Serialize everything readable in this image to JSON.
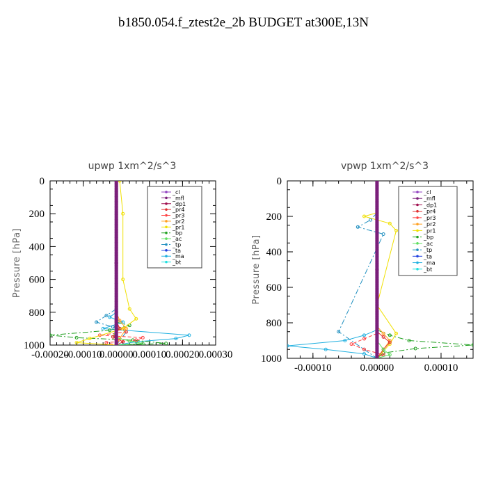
{
  "page": {
    "title": "b1850.054.f_ztest2e_2b  BUDGET at300E,13N"
  },
  "legend_entries": [
    {
      "name": "_cl",
      "color": "#9040c0",
      "style": "solid"
    },
    {
      "name": "_mfl",
      "color": "#7a1f7a",
      "style": "solid"
    },
    {
      "name": "_dp1",
      "color": "#a01050",
      "style": "solid"
    },
    {
      "name": "_pr4",
      "color": "#e03030",
      "style": "solid"
    },
    {
      "name": "_pr3",
      "color": "#ff4040",
      "style": "dash"
    },
    {
      "name": "_pr2",
      "color": "#ffa020",
      "style": "solid"
    },
    {
      "name": "_pr1",
      "color": "#f0e000",
      "style": "solid"
    },
    {
      "name": "_bp",
      "color": "#20a020",
      "style": "dashdot"
    },
    {
      "name": "_ac",
      "color": "#60e060",
      "style": "solid"
    },
    {
      "name": "_tp",
      "color": "#2090c0",
      "style": "dashdot"
    },
    {
      "name": "_ta",
      "color": "#2040e0",
      "style": "solid"
    },
    {
      "name": "_ma",
      "color": "#20b0e0",
      "style": "solid"
    },
    {
      "name": "_bt",
      "color": "#20e0e0",
      "style": "solid"
    }
  ],
  "chart_data": [
    {
      "type": "line",
      "title": "upwp  1xm^2/s^3",
      "ylabel": "Pressure [hPa]",
      "xlabel": "",
      "xlim": [
        -0.0002,
        0.0003
      ],
      "ylim": [
        1000,
        0
      ],
      "yticks": [
        0,
        200,
        400,
        600,
        800,
        1000
      ],
      "xtick_labels": [
        "-0.00020",
        "-0.00010",
        "0.00000",
        "0.00010",
        "0.00020",
        "0.00030"
      ],
      "xtick_values": [
        -0.0002,
        -0.0001,
        0.0,
        0.0001,
        0.0002,
        0.0003
      ],
      "legend": "top-right",
      "grid": false,
      "series": [
        {
          "name": "_ma",
          "x": [
            0.0,
            -2e-05,
            2e-05,
            -4e-05,
            0.00022,
            0.00018,
            6e-05,
            0.0
          ],
          "y": [
            800,
            830,
            860,
            900,
            940,
            960,
            980,
            1000
          ]
        },
        {
          "name": "_bp",
          "x": [
            0.0,
            4e-05,
            -2e-05,
            -0.0002,
            -0.00012,
            5e-05,
            0.00015,
            0.0
          ],
          "y": [
            860,
            880,
            910,
            940,
            955,
            970,
            990,
            1000
          ]
        },
        {
          "name": "_tp",
          "x": [
            0.0,
            -3e-05,
            -6e-05,
            -1e-05,
            3e-05,
            0.0
          ],
          "y": [
            780,
            820,
            860,
            890,
            920,
            1000
          ]
        },
        {
          "name": "_pr3",
          "x": [
            0.0,
            2e-05,
            3e-05,
            -5e-05,
            8e-05,
            6e-05,
            -3e-05,
            0.0
          ],
          "y": [
            880,
            900,
            920,
            940,
            955,
            970,
            985,
            1000
          ]
        },
        {
          "name": "_pr1",
          "x": [
            1e-05,
            2e-05,
            2e-05,
            4e-05,
            6e-05,
            2e-05,
            -8e-05,
            -0.00012,
            0.0
          ],
          "y": [
            0,
            200,
            600,
            780,
            840,
            900,
            960,
            985,
            1000
          ]
        },
        {
          "name": "_pr2",
          "x": [
            0.0,
            1e-05,
            3e-05,
            1e-05,
            0.0
          ],
          "y": [
            800,
            850,
            900,
            960,
            1000
          ]
        },
        {
          "name": "_ac",
          "x": [
            0.0,
            -1e-05,
            4e-05,
            8e-05,
            0.0
          ],
          "y": [
            900,
            950,
            975,
            990,
            1000
          ]
        },
        {
          "name": "_pr4",
          "x": [
            0.0,
            1e-05,
            -1e-05,
            2e-05,
            0.0
          ],
          "y": [
            850,
            900,
            950,
            980,
            1000
          ]
        },
        {
          "name": "_cl",
          "x": [
            0.0,
            0.0,
            0.0
          ],
          "y": [
            0,
            500,
            1000
          ]
        },
        {
          "name": "_mfl",
          "x": [
            0.0,
            0.0,
            0.0
          ],
          "y": [
            0,
            500,
            1000
          ]
        },
        {
          "name": "_dp1",
          "x": [
            0.0,
            0.0,
            0.0
          ],
          "y": [
            0,
            500,
            1000
          ]
        }
      ]
    },
    {
      "type": "line",
      "title": "vpwp  1xm^2/s^3",
      "ylabel": "Pressure [hPa]",
      "xlabel": "",
      "xlim": [
        -0.00014,
        0.00015
      ],
      "ylim": [
        1000,
        0
      ],
      "yticks": [
        0,
        200,
        400,
        600,
        800,
        1000
      ],
      "xtick_labels": [
        "-0.00010",
        "0.00000",
        "0.00010"
      ],
      "xtick_values": [
        -0.0001,
        0.0,
        0.0001
      ],
      "legend": "top-right",
      "grid": false,
      "series": [
        {
          "name": "_bp",
          "x": [
            0.0,
            2e-05,
            5e-05,
            0.00015,
            6e-05,
            1e-05,
            0.0
          ],
          "y": [
            840,
            870,
            900,
            925,
            945,
            970,
            1000
          ]
        },
        {
          "name": "_ma",
          "x": [
            0.0,
            -2e-05,
            -5e-05,
            -0.00014,
            -8e-05,
            -2e-05,
            0.0
          ],
          "y": [
            840,
            870,
            900,
            930,
            950,
            975,
            1000
          ]
        },
        {
          "name": "_tp",
          "x": [
            0.0,
            -1e-05,
            -3e-05,
            1e-05,
            -6e-05,
            -2e-05,
            0.0
          ],
          "y": [
            180,
            220,
            260,
            300,
            850,
            950,
            1000
          ]
        },
        {
          "name": "_pr3",
          "x": [
            0.0,
            -2e-05,
            -4e-05,
            -2e-05,
            1e-05,
            0.0
          ],
          "y": [
            860,
            890,
            920,
            950,
            980,
            1000
          ]
        },
        {
          "name": "_pr1",
          "x": [
            0.0,
            -2e-05,
            2e-05,
            3e-05,
            0.0,
            3e-05,
            2e-05,
            0.0
          ],
          "y": [
            180,
            200,
            240,
            280,
            700,
            860,
            920,
            1000
          ]
        },
        {
          "name": "_pr2",
          "x": [
            0.0,
            1e-05,
            2e-05,
            1e-05,
            0.0
          ],
          "y": [
            820,
            860,
            900,
            950,
            1000
          ]
        },
        {
          "name": "_pr4",
          "x": [
            0.0,
            1e-05,
            2e-05,
            1e-05,
            0.0
          ],
          "y": [
            850,
            880,
            910,
            950,
            1000
          ]
        },
        {
          "name": "_ac",
          "x": [
            0.0,
            1e-05,
            2e-05,
            0.0
          ],
          "y": [
            900,
            950,
            980,
            1000
          ]
        },
        {
          "name": "_cl",
          "x": [
            0.0,
            0.0,
            0.0
          ],
          "y": [
            0,
            500,
            1000
          ]
        },
        {
          "name": "_mfl",
          "x": [
            0.0,
            0.0,
            0.0
          ],
          "y": [
            0,
            500,
            1000
          ]
        },
        {
          "name": "_dp1",
          "x": [
            0.0,
            0.0,
            0.0
          ],
          "y": [
            0,
            500,
            1000
          ]
        }
      ]
    }
  ]
}
